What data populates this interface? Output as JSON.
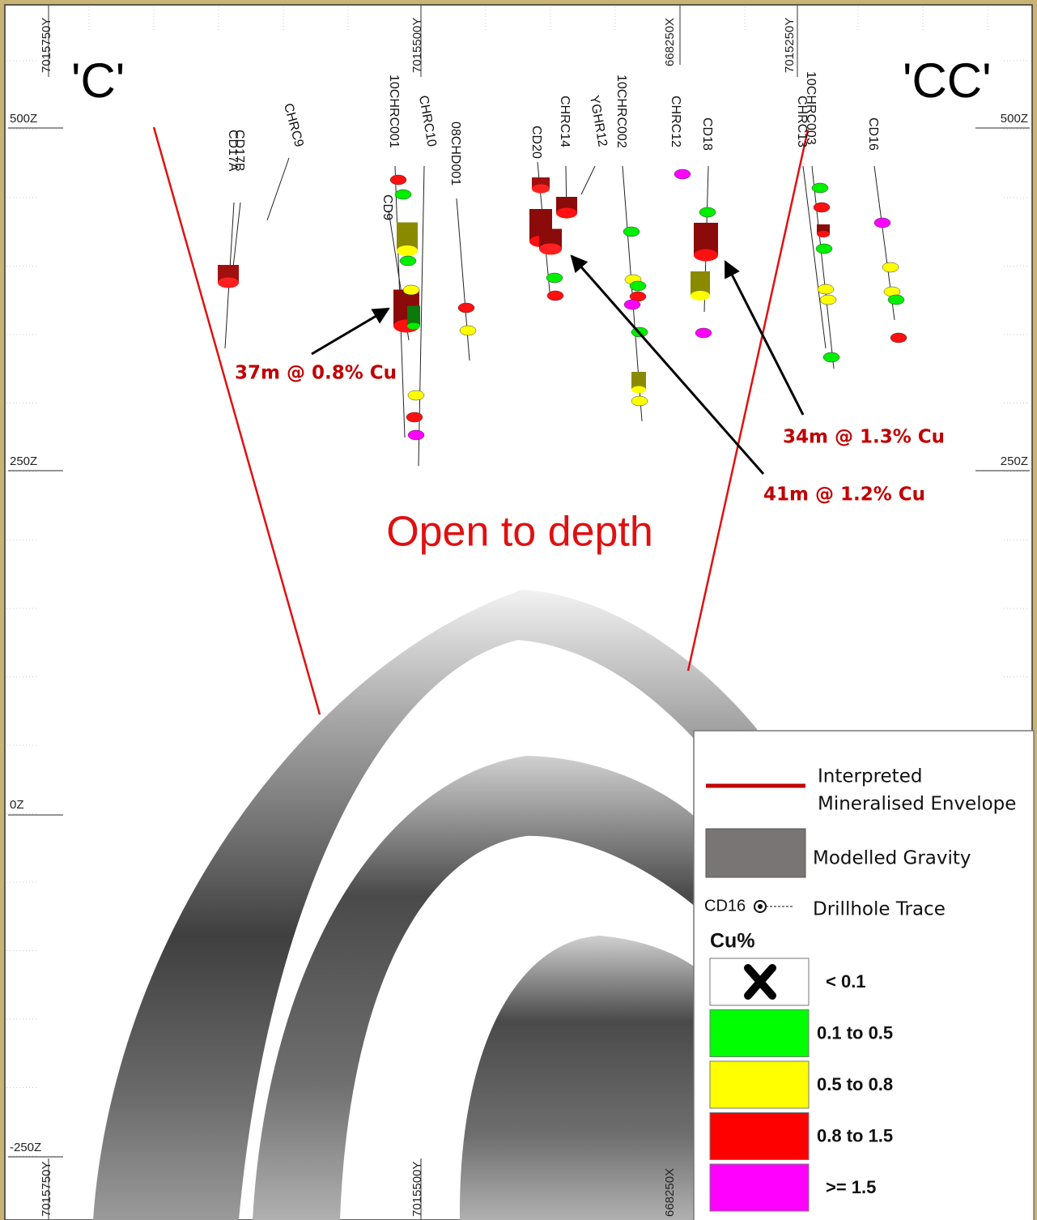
{
  "section_labels": [
    "'C'",
    "'CC'"
  ],
  "grid_labels": {
    "top": [
      "7015750Y",
      "7015500Y",
      "668250X",
      "7015250Y"
    ],
    "bottom": [
      "7015750Y",
      "7015500Y",
      "668250X"
    ],
    "left": [
      "500Z",
      "250Z",
      "0Z",
      "-250Z"
    ],
    "right": [
      "500Z",
      "250Z"
    ]
  },
  "drillholes": [
    "CD17A",
    "CD17B",
    "CHRC9",
    "10CHRC001",
    "CHRC10",
    "CD9",
    "08CHD001",
    "CD20",
    "CHRC14",
    "YGHR12",
    "10CHRC002",
    "CHRC12",
    "CD18",
    "10CHRC003",
    "CHRC13",
    "CD16"
  ],
  "annotations": [
    "37m @ 0.8% Cu",
    "34m @ 1.3% Cu",
    "41m @ 1.2% Cu"
  ],
  "open_note": "Open to depth",
  "legend": {
    "envelope": [
      "Interpreted",
      "Mineralised Envelope"
    ],
    "gravity": "Modelled Gravity",
    "trace_sample": "CD16",
    "trace": "Drillhole Trace",
    "cu_title": "Cu%",
    "classes": [
      {
        "label": "< 0.1",
        "color": "#ffffff"
      },
      {
        "label": "0.1 to 0.5",
        "color": "#00ff00"
      },
      {
        "label": "0.5 to 0.8",
        "color": "#ffff00"
      },
      {
        "label": "0.8 to 1.5",
        "color": "#ff0000"
      },
      {
        "label": ">= 1.5",
        "color": "#ff00ff"
      }
    ]
  }
}
